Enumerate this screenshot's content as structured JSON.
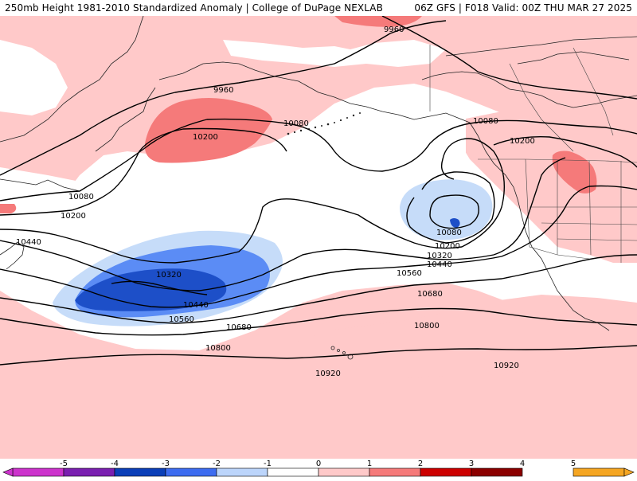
{
  "header": {
    "title_left": "250mb Height 1981-2010 Standardized Anomaly | College of DuPage NEXLAB",
    "title_right": "06Z GFS | F018 Valid: 00Z THU MAR 27 2025"
  },
  "contours": {
    "labels": [
      "9960",
      "9960",
      "10080",
      "10080",
      "10080",
      "10080",
      "10200",
      "10200",
      "10200",
      "10200",
      "10320",
      "10320",
      "10440",
      "10440",
      "10440",
      "10560",
      "10560",
      "10680",
      "10680",
      "10800",
      "10800",
      "10920",
      "10920"
    ]
  },
  "colorbar": {
    "ticks": [
      "-5",
      "-4",
      "-3",
      "-2",
      "-1",
      "0",
      "1",
      "2",
      "3",
      "4",
      "5"
    ],
    "colors": [
      "#cc33cc",
      "#7a1fb0",
      "#0b3fb8",
      "#3d6cf0",
      "#bcd5fb",
      "#ffffff",
      "#ffc9c9",
      "#f57a7a",
      "#cc0000",
      "#8b0000",
      "#f5a623"
    ]
  },
  "anomaly_colors": {
    "pos_light": "#ffc9c9",
    "pos_mid": "#f57a7a",
    "neg_light": "#c6dcf9",
    "neg_mid": "#5b8cf5",
    "neg_dark": "#1d4fc8"
  }
}
